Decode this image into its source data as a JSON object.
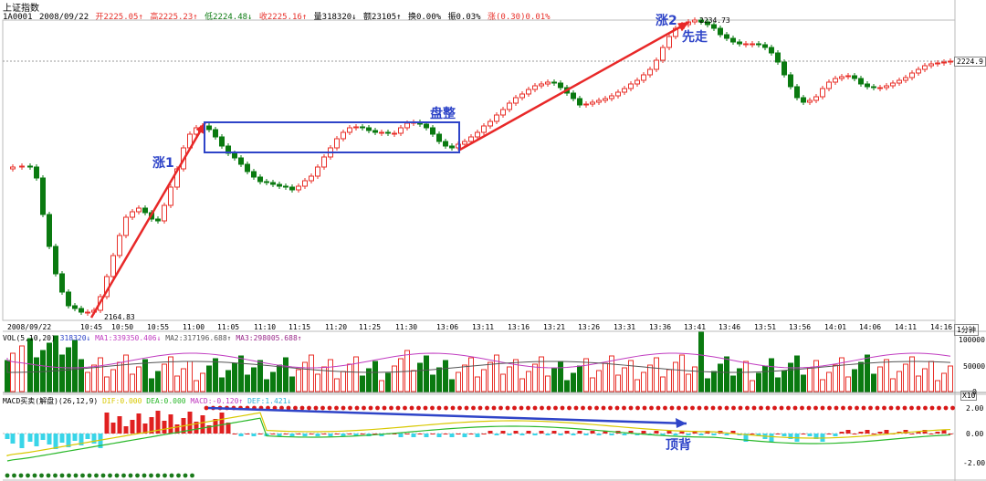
{
  "header": {
    "title": "上证指数",
    "code": "1A0001",
    "date": "2008/09/22",
    "open": "开2225.05↑",
    "high": "高2225.23↑",
    "low": "低2224.48↓",
    "close": "收2225.16↑",
    "volume": "量318320↓",
    "amount": "额23105↑",
    "turnover": "换0.00%",
    "amplitude": "振0.03%",
    "change": "涨(0.30)0.01%"
  },
  "colors": {
    "up": "#e8302a",
    "down": "#0a7a10",
    "annotation": "#2e44c8",
    "arrow": "#e82828"
  },
  "price_axis": {
    "current": "2224.9"
  },
  "labels": {
    "peak_value": "2234.73",
    "low_value": "2164.83"
  },
  "annotations": {
    "rise1": "涨1",
    "consolidation": "盘整",
    "rise2": "涨2",
    "lead": "先走",
    "top_divergence": "顶背"
  },
  "time_axis": [
    "2008/09/22",
    "10:45",
    "10:50",
    "10:55",
    "11:00",
    "11:05",
    "11:10",
    "11:15",
    "11:20",
    "11:25",
    "11:30",
    "13:06",
    "13:11",
    "13:16",
    "13:21",
    "13:26",
    "13:31",
    "13:36",
    "13:41",
    "13:46",
    "13:51",
    "13:56",
    "14:01",
    "14:06",
    "14:11",
    "14:16"
  ],
  "period_button": "1分钟",
  "vol": {
    "header": "VOL(5,10,20)",
    "value": "318320↓",
    "ma1": "MA1:339350.406↓",
    "ma2": "MA2:317196.688↑",
    "ma3": "MA3:298005.688↑",
    "axis": [
      "100000",
      "50000",
      "0"
    ]
  },
  "macd": {
    "header": "MACD买卖(解盘)(26,12,9)",
    "dif": "DIF:0.000",
    "dea": "DEA:0.000",
    "macd": "MACD:-0.120↑",
    "extra": "DEF:1.421↓",
    "axis": [
      "2.00",
      "0.00",
      "-2.00"
    ]
  },
  "zoom_label": "X10"
}
